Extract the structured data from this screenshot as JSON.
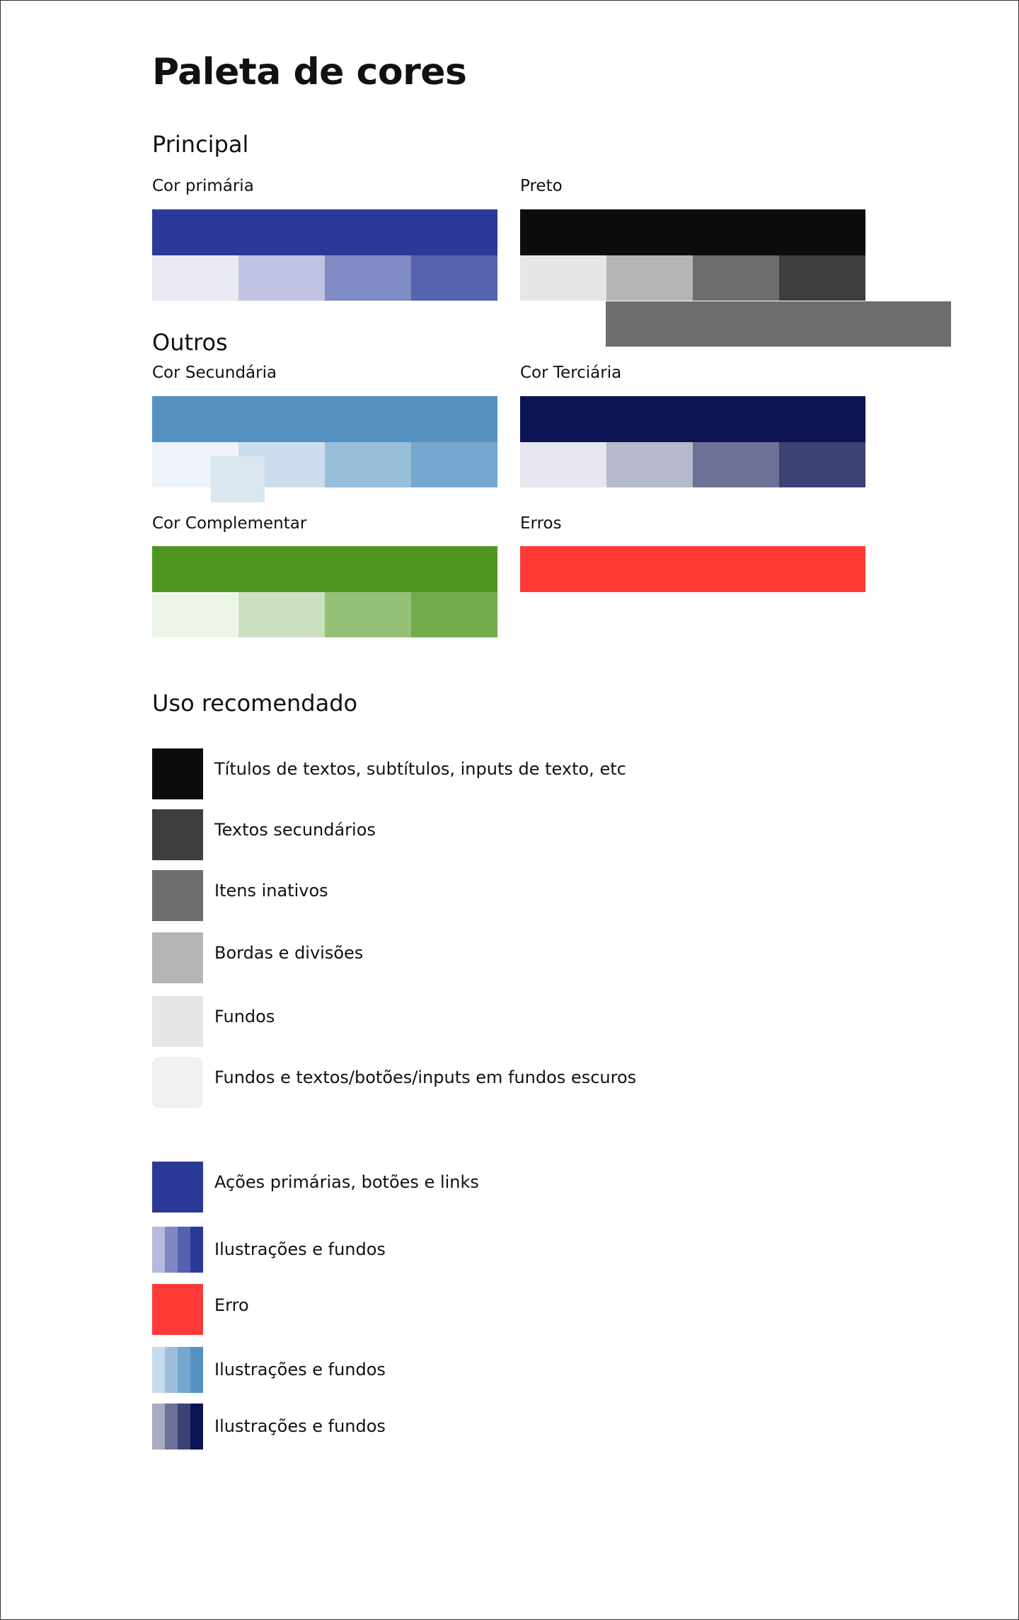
{
  "title": "Paleta de cores",
  "sections": {
    "principal": "Principal",
    "outros": "Outros",
    "uso": "Uso recomendado"
  },
  "palettes": {
    "primary": {
      "label": "Cor primária",
      "main": "#2b3a98",
      "tints": [
        "#eaeaf5",
        "#c0c4e2",
        "#808ac3",
        "#5562ae"
      ]
    },
    "black": {
      "label": "Preto",
      "main": "#0c0c0c",
      "tints": [
        "#e6e6e6",
        "#b5b5b5",
        "#6d6d6d",
        "#3e3e3e"
      ],
      "extra": "#6d6d6d"
    },
    "secondary": {
      "label": "Cor Secundária",
      "main": "#5592c2",
      "tints": [
        "#edf3f9",
        "#ccdeed",
        "#99bed9",
        "#75a7cf"
      ],
      "extra": "#dae6f0"
    },
    "tertiary": {
      "label": "Cor Terciária",
      "main": "#0c1352",
      "tints": [
        "#e6e7ee",
        "#b6b8cb",
        "#6d7196",
        "#3c4273"
      ]
    },
    "complementary": {
      "label": "Cor Complementar",
      "main": "#4e9620",
      "tints": [
        "#edf5e9",
        "#cbe0c0",
        "#94c177",
        "#72ab4c"
      ]
    },
    "errors": {
      "label": "Erros",
      "main": "#ff3a36"
    }
  },
  "usage_neutral": [
    {
      "color": "#0c0c0c",
      "text": "Títulos de textos, subtítulos, inputs de texto, etc"
    },
    {
      "color": "#3e3e3e",
      "text": "Textos secundários"
    },
    {
      "color": "#6d6d6d",
      "text": "Itens inativos"
    },
    {
      "color": "#b5b5b5",
      "text": "Bordas e divisões"
    },
    {
      "color": "#e6e6e6",
      "text": "Fundos"
    },
    {
      "color": "#f0f0f0",
      "text": "Fundos e textos/botões/inputs em fundos escuros"
    }
  ],
  "usage_color": [
    {
      "colors": [
        "#2b3a98"
      ],
      "text": "Ações primárias, botões e links"
    },
    {
      "colors": [
        "#b6bade",
        "#8088c4",
        "#5562ae",
        "#2b3a98"
      ],
      "text": "Ilustrações e fundos"
    },
    {
      "colors": [
        "#ff3a36"
      ],
      "text": "Erro"
    },
    {
      "colors": [
        "#c6daec",
        "#9cbfdb",
        "#75a7cf",
        "#5592c2"
      ],
      "text": "Ilustrações e fundos"
    },
    {
      "colors": [
        "#a9abbf",
        "#6d7196",
        "#3c4273",
        "#0c1352"
      ],
      "text": "Ilustrações e fundos"
    }
  ]
}
